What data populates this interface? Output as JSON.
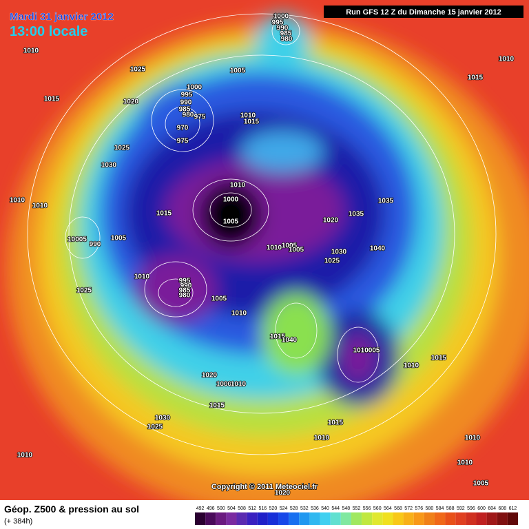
{
  "header": {
    "date": "Mardi 31 janvier 2012",
    "time": "13:00 locale",
    "run": "Run GFS 12 Z du Dimanche 15 janvier 2012"
  },
  "footer": {
    "title": "Géop. Z500 & pression au sol",
    "lead": "(+ 384h)",
    "copyright": "Copyright © 2011 Meteociel.fr"
  },
  "scale": {
    "labels": [
      492,
      496,
      500,
      504,
      508,
      512,
      516,
      520,
      524,
      528,
      532,
      536,
      540,
      544,
      548,
      552,
      556,
      560,
      564,
      568,
      572,
      576,
      580,
      584,
      588,
      592,
      596,
      600,
      604,
      608,
      612
    ],
    "colors": [
      "#2a0030",
      "#4a0a5a",
      "#6a1a80",
      "#7a2aa0",
      "#5a2ab0",
      "#3a20c0",
      "#2020c8",
      "#1830d8",
      "#1848e8",
      "#1870f0",
      "#2098f0",
      "#30b8f0",
      "#40d0f0",
      "#60e0d0",
      "#80e8a0",
      "#a0e860",
      "#c0e840",
      "#e0e830",
      "#f0e020",
      "#f8c818",
      "#f8b018",
      "#f89818",
      "#f08018",
      "#f06818",
      "#e85018",
      "#e04020",
      "#d03020",
      "#c02020",
      "#a01818",
      "#801010",
      "#600808"
    ]
  },
  "isobars": [
    "1010",
    "1025",
    "1015",
    "1020",
    "1005",
    "1000",
    "995",
    "990",
    "985",
    "980",
    "1000",
    "995",
    "990",
    "985",
    "980",
    "975",
    "970",
    "975",
    "1010",
    "1015",
    "1025",
    "1030",
    "1010",
    "1000",
    "1005",
    "1010",
    "1010",
    "1015",
    "1020",
    "1035",
    "1035",
    "10005",
    "990",
    "1005",
    "1010",
    "1005",
    "1005",
    "1030",
    "1025",
    "1040",
    "1010",
    "995",
    "990",
    "985",
    "980",
    "1005",
    "1025",
    "1010",
    "1015",
    "1040",
    "1010005",
    "1015",
    "1010",
    "1020",
    "1000",
    "1010",
    "1015",
    "1030",
    "1025",
    "1015",
    "1010",
    "1010",
    "1010",
    "1005",
    "1010",
    "1020",
    "1010",
    "1015"
  ]
}
